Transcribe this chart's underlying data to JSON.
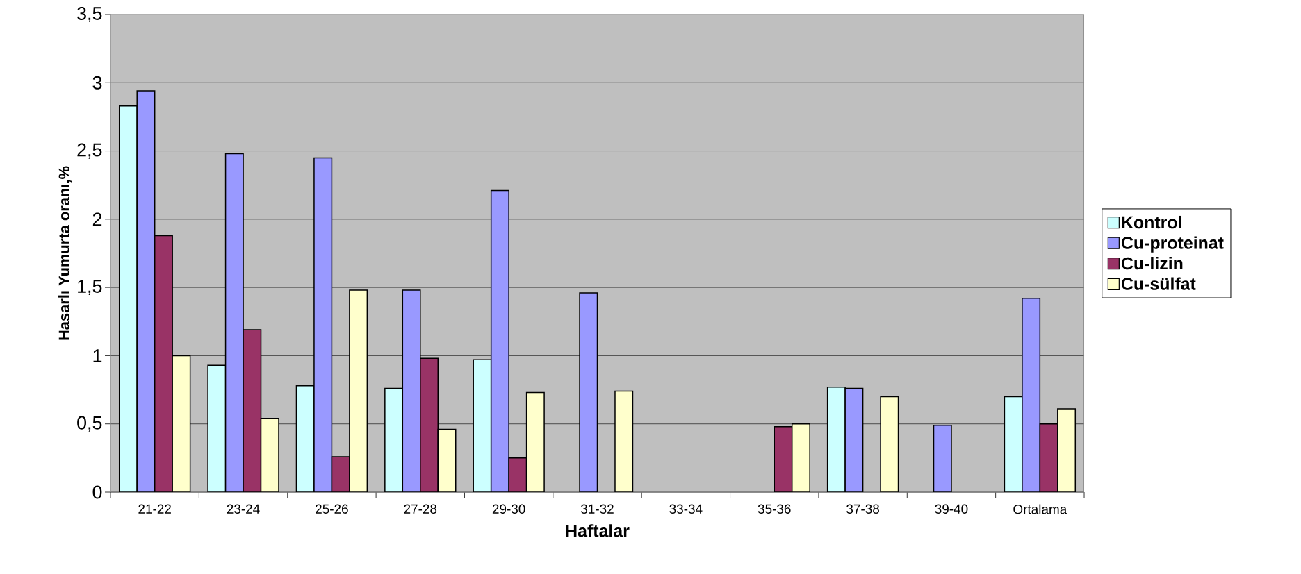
{
  "chart_data": {
    "type": "bar",
    "xlabel": "Haftalar",
    "ylabel": "Hasarlı Yumurta oranı,%",
    "categories": [
      "21-22",
      "23-24",
      "25-26",
      "27-28",
      "29-30",
      "31-32",
      "33-34",
      "35-36",
      "37-38",
      "39-40",
      "Ortalama"
    ],
    "series": [
      {
        "name": "Kontrol",
        "color": "#ccffff",
        "values": [
          2.83,
          0.93,
          0.78,
          0.76,
          0.97,
          null,
          null,
          null,
          0.77,
          null,
          0.7
        ]
      },
      {
        "name": "Cu-proteinat",
        "color": "#9999ff",
        "values": [
          2.94,
          2.48,
          2.45,
          1.48,
          2.21,
          1.46,
          null,
          null,
          0.76,
          0.49,
          1.42
        ]
      },
      {
        "name": "Cu-lizin",
        "color": "#993366",
        "values": [
          1.88,
          1.19,
          0.26,
          0.98,
          0.25,
          null,
          null,
          0.48,
          null,
          null,
          0.5
        ]
      },
      {
        "name": "Cu-sülfat",
        "color": "#ffffcc",
        "values": [
          1.0,
          0.54,
          1.48,
          0.46,
          0.73,
          0.74,
          null,
          0.5,
          0.7,
          null,
          0.61
        ]
      }
    ],
    "ylim": [
      0,
      3.5
    ],
    "yticks": [
      0,
      {
        "value": 0.5,
        "label": "0,5"
      },
      1,
      {
        "value": 1.5,
        "label": "1,5"
      },
      2,
      {
        "value": 2.5,
        "label": "2,5"
      },
      3,
      {
        "value": 3.5,
        "label": "3,5"
      }
    ],
    "grid": "y",
    "legend": "right"
  }
}
